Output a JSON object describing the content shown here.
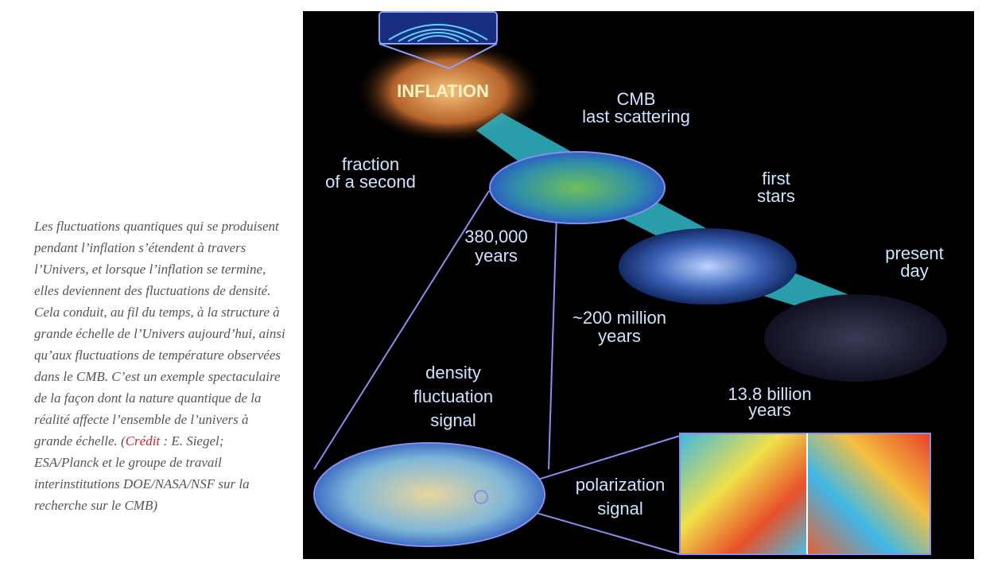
{
  "caption": {
    "text_before": "Les fluctuations quantiques qui se produisent pendant l’inflation s’étendent à travers l’Univers, et lorsque l’inflation se termine, elles deviennent des fluctuations de densité. Cela conduit, au fil du temps, à la structure à grande échelle de l’Univers aujourd’hui, ainsi qu’aux fluctuations de température observées dans le CMB. C’est un exemple spectaculaire de la façon dont la nature quantique de la réalité affecte l’ensemble de l’univers à grande échelle. (",
    "credit_link": "Crédit",
    "text_after": " : E. Siegel; ESA/Planck et le groupe de travail interinstitutions DOE/NASA/NSF sur la recherche sur le CMB)"
  },
  "figure": {
    "labels": {
      "inflation": [
        "INFLATION"
      ],
      "cmb": [
        "CMB",
        "last scattering"
      ],
      "fraction": [
        "fraction",
        "of a second"
      ],
      "first_stars": [
        "first",
        "stars"
      ],
      "years_380000": [
        "380,000",
        "years"
      ],
      "present_day": [
        "present",
        "day"
      ],
      "million_200": [
        "~200 million",
        "years"
      ],
      "density": [
        "density",
        "fluctuation",
        "signal"
      ],
      "billion_13_8": [
        "13.8 billion",
        "years"
      ],
      "polarization": [
        "polarization",
        "signal"
      ]
    }
  }
}
